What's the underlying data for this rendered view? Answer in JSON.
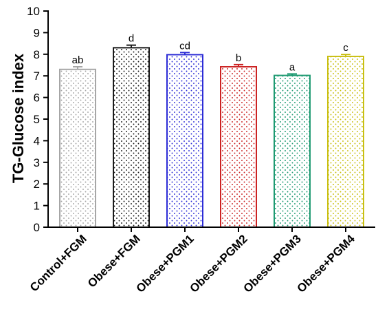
{
  "chart_data": {
    "type": "bar",
    "ylabel": "TG-Glucose index",
    "xlabel": "",
    "ylim": [
      0,
      10
    ],
    "yticks": [
      0,
      1,
      2,
      3,
      4,
      5,
      6,
      7,
      8,
      9,
      10
    ],
    "grid": false,
    "categories": [
      "Control+FGM",
      "Obese+FGM",
      "Obese+PGM1",
      "Obese+PGM2",
      "Obese+PGM3",
      "Obese+PGM4"
    ],
    "values": [
      7.3,
      8.3,
      7.98,
      7.42,
      7.02,
      7.9
    ],
    "errors": [
      0.12,
      0.12,
      0.1,
      0.1,
      0.07,
      0.09
    ],
    "significance_labels": [
      "ab",
      "d",
      "cd",
      "b",
      "a",
      "c"
    ],
    "colors": [
      "#a6a6a6",
      "#1a1a1a",
      "#2c2cd6",
      "#cc2222",
      "#1e9a72",
      "#c9bf12"
    ],
    "pattern": "dotted"
  }
}
